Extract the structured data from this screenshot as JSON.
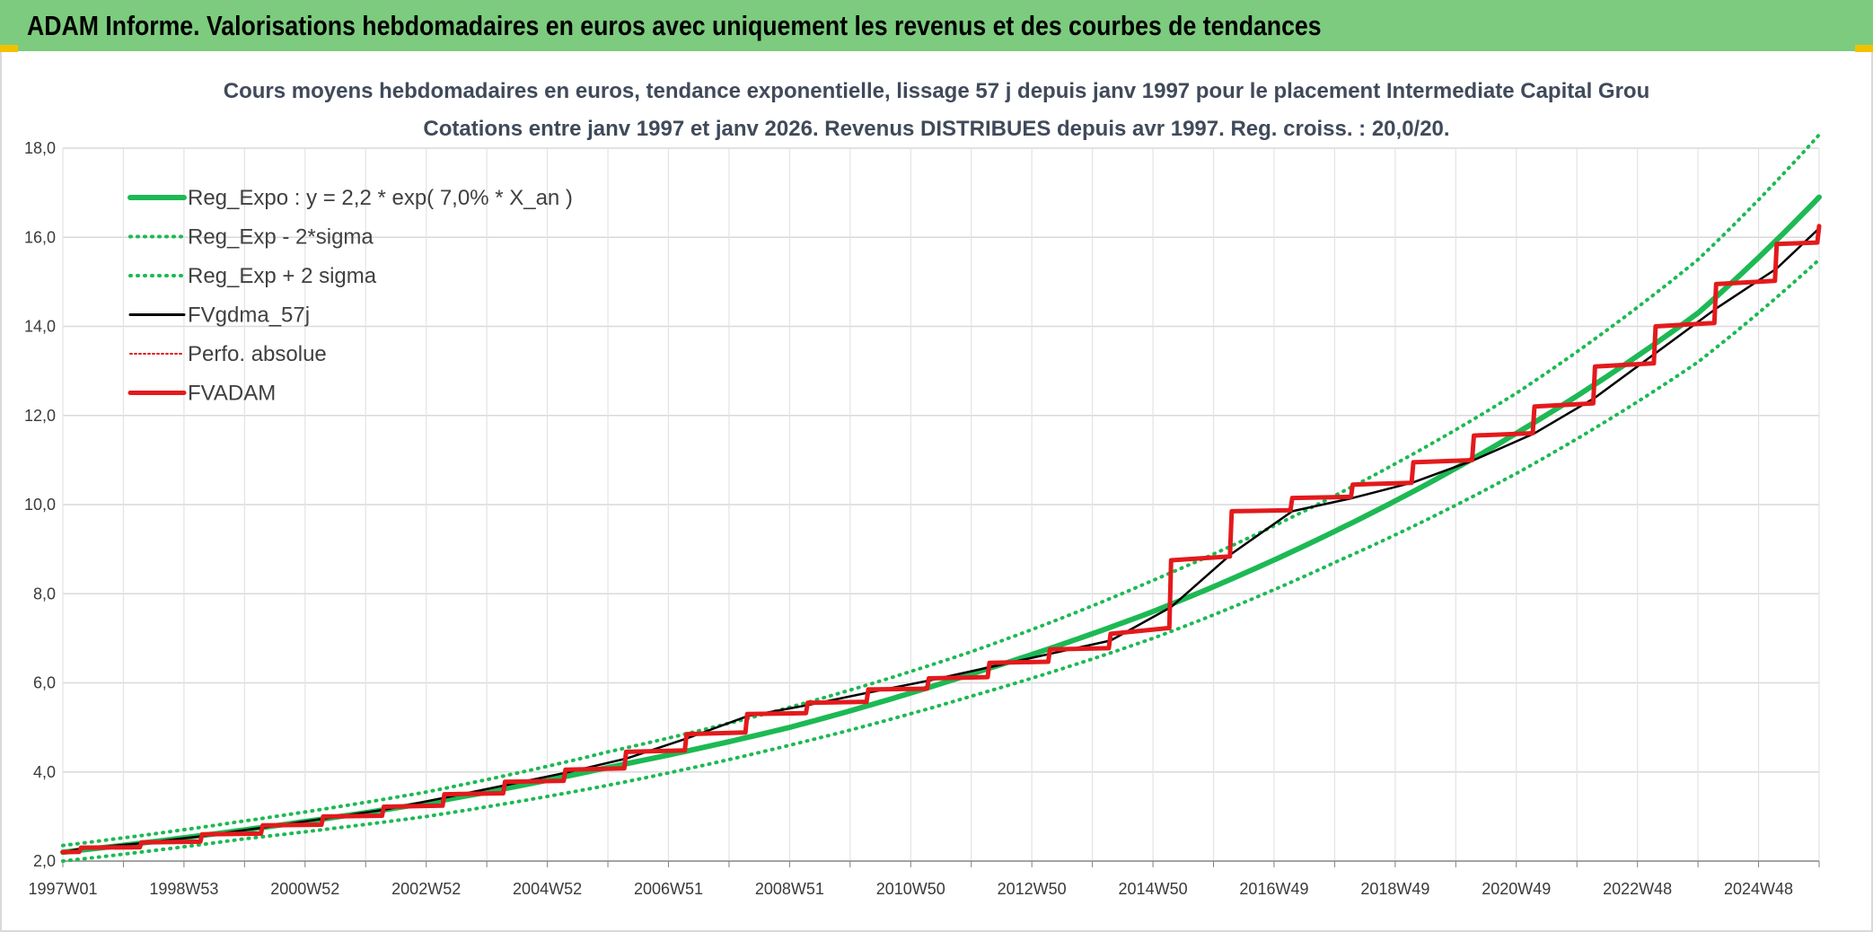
{
  "header": {
    "title": "ADAM Informe. Valorisations hebdomadaires en euros avec uniquement les revenus et des courbes de tendances"
  },
  "colors": {
    "header_bg": "#7ccb7e",
    "accent": "#f2c200",
    "trend_green": "#1db954",
    "red": "#e31a1c",
    "black": "#000000",
    "grid": "#d9d9d9"
  },
  "chart_data": {
    "type": "line",
    "title": "Cours moyens hebdomadaires en euros, tendance exponentielle, lissage 57 j depuis janv 1997 pour le placement Intermediate Capital Grou",
    "subtitle": "Cotations entre janv 1997 et janv 2026. Revenus DISTRIBUES depuis avr 1997. Reg. croiss. : 20,0/20.",
    "xlabel": "",
    "ylabel": "",
    "x_range": [
      1997.0,
      2026.0
    ],
    "ylim": [
      2.0,
      18.0
    ],
    "y_ticks": [
      "2,0",
      "4,0",
      "6,0",
      "8,0",
      "10,0",
      "12,0",
      "14,0",
      "16,0",
      "18,0"
    ],
    "x_tick_labels": [
      "1997W01",
      "1998W53",
      "2000W52",
      "2002W52",
      "2004W52",
      "2006W51",
      "2008W51",
      "2010W50",
      "2012W50",
      "2014W50",
      "2016W49",
      "2018W49",
      "2020W49",
      "2022W48",
      "2024W48"
    ],
    "legend_position": "top-left",
    "grid": true,
    "series": [
      {
        "name": "Reg_Expo : y = 2,2 * exp( 7,0% *  X_an )",
        "style": "solid-thick",
        "color": "#1db954",
        "x": [
          1997,
          2000,
          2003,
          2006,
          2009,
          2012,
          2015,
          2018,
          2021,
          2024,
          2026
        ],
        "values": [
          2.2,
          2.7,
          3.3,
          4.1,
          5.0,
          6.2,
          7.6,
          9.4,
          11.6,
          14.3,
          16.9
        ]
      },
      {
        "name": "Reg_Exp - 2*sigma",
        "style": "dotted",
        "color": "#1db954",
        "x": [
          1997,
          2000,
          2003,
          2006,
          2009,
          2012,
          2015,
          2018,
          2021,
          2024,
          2026
        ],
        "values": [
          2.0,
          2.5,
          3.0,
          3.7,
          4.6,
          5.7,
          7.0,
          8.7,
          10.7,
          13.2,
          15.5
        ]
      },
      {
        "name": "Reg_Exp + 2 sigma",
        "style": "dotted",
        "color": "#1db954",
        "x": [
          1997,
          2000,
          2003,
          2006,
          2009,
          2012,
          2015,
          2018,
          2021,
          2024,
          2026
        ],
        "values": [
          2.35,
          2.9,
          3.55,
          4.45,
          5.45,
          6.7,
          8.3,
          10.2,
          12.5,
          15.5,
          18.3
        ]
      },
      {
        "name": "FVgdma_57j",
        "style": "solid-thin",
        "color": "#000000",
        "x": [
          1997.0,
          1997.3,
          1998.3,
          1999.3,
          2000.3,
          2001.3,
          2002.3,
          2003.3,
          2004.3,
          2005.3,
          2006.3,
          2007.3,
          2008.3,
          2009.3,
          2010.3,
          2011.3,
          2012.3,
          2013.3,
          2014.3,
          2015.3,
          2016.3,
          2017.3,
          2018.3,
          2019.3,
          2020.3,
          2021.3,
          2022.3,
          2023.3,
          2024.3,
          2025.3,
          2026.0
        ],
        "values": [
          2.2,
          2.28,
          2.4,
          2.56,
          2.75,
          2.95,
          3.15,
          3.42,
          3.7,
          3.98,
          4.3,
          4.75,
          5.25,
          5.5,
          5.78,
          6.05,
          6.35,
          6.65,
          6.95,
          7.7,
          8.9,
          9.85,
          10.15,
          10.5,
          11.0,
          11.6,
          12.4,
          13.4,
          14.4,
          15.3,
          16.2
        ]
      },
      {
        "name": "Perfo. absolue",
        "style": "dotted",
        "color": "#e31a1c",
        "x": [
          1997.0,
          1997.3,
          1998.3,
          1999.3,
          2000.3,
          2001.3,
          2002.3,
          2003.3,
          2004.3,
          2005.3,
          2006.3,
          2007.3,
          2008.3,
          2009.3,
          2010.3,
          2011.3,
          2012.3,
          2013.3,
          2014.3,
          2015.3,
          2016.3,
          2017.3,
          2018.3,
          2019.3,
          2020.3,
          2021.3,
          2022.3,
          2023.3,
          2024.3,
          2025.3,
          2026.0
        ],
        "values": [
          2.2,
          2.3,
          2.42,
          2.6,
          2.8,
          3.0,
          3.22,
          3.5,
          3.78,
          4.05,
          4.45,
          4.85,
          5.3,
          5.55,
          5.85,
          6.1,
          6.45,
          6.75,
          7.1,
          8.75,
          9.85,
          10.15,
          10.45,
          10.95,
          11.55,
          12.2,
          13.1,
          14.0,
          14.95,
          15.85,
          16.25
        ]
      },
      {
        "name": "FVADAM",
        "style": "step-thick",
        "color": "#e31a1c",
        "x": [
          1997.0,
          1997.3,
          1998.3,
          1999.3,
          2000.3,
          2001.3,
          2002.3,
          2003.3,
          2004.3,
          2005.3,
          2006.3,
          2007.3,
          2008.3,
          2009.3,
          2010.3,
          2011.3,
          2012.3,
          2013.3,
          2014.3,
          2015.3,
          2016.3,
          2017.3,
          2018.3,
          2019.3,
          2020.3,
          2021.3,
          2022.3,
          2023.3,
          2024.3,
          2025.3,
          2026.0
        ],
        "values": [
          2.2,
          2.3,
          2.42,
          2.6,
          2.8,
          3.0,
          3.22,
          3.5,
          3.78,
          4.05,
          4.45,
          4.85,
          5.3,
          5.55,
          5.85,
          6.1,
          6.45,
          6.75,
          7.1,
          8.75,
          9.85,
          10.15,
          10.45,
          10.95,
          11.55,
          12.2,
          13.1,
          14.0,
          14.95,
          15.85,
          16.25
        ]
      }
    ]
  }
}
